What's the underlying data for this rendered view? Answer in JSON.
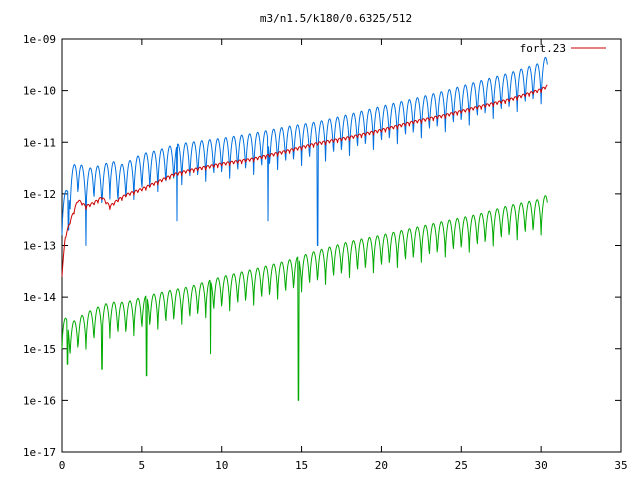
{
  "chart_data": {
    "type": "line",
    "title": "m3/n1.5/k180/0.6325/512",
    "xlabel": "",
    "ylabel": "",
    "xlim": [
      0,
      35
    ],
    "ylim": [
      1e-17,
      1e-09
    ],
    "yscale": "log",
    "grid": false,
    "legend_position": "top-right",
    "x_ticks": [
      0,
      5,
      10,
      15,
      20,
      25,
      30,
      35
    ],
    "x_tick_labels": [
      "0",
      "5",
      "10",
      "15",
      "20",
      "25",
      "30",
      "35"
    ],
    "y_ticks": [
      1e-17,
      1e-16,
      1e-15,
      1e-14,
      1e-13,
      1e-12,
      1e-11,
      1e-10,
      1e-09
    ],
    "y_tick_labels": [
      "1e-17",
      "1e-16",
      "1e-15",
      "1e-14",
      "1e-13",
      "1e-12",
      "1e-11",
      "1e-10",
      "1e-09"
    ],
    "series": [
      {
        "color": "#0070e0",
        "oscillation_depth_decades": 0.8,
        "oscillation_period": 0.5,
        "x": [
          0.0,
          0.3,
          0.6,
          1.0,
          1.5,
          2.0,
          2.5,
          3.0,
          3.5,
          4.0,
          5.0,
          6.0,
          7.0,
          8.0,
          9.0,
          10.0,
          12.0,
          14.0,
          16.0,
          18.0,
          20.0,
          22.0,
          24.0,
          26.0,
          28.0,
          30.0,
          30.4
        ],
        "y": [
          1e-12,
          1.2e-12,
          3e-12,
          5e-12,
          2.5e-12,
          4e-12,
          3e-12,
          5e-12,
          3.5e-12,
          4e-12,
          6e-12,
          7e-12,
          9e-12,
          1e-11,
          1.1e-11,
          1.2e-11,
          1.5e-11,
          2e-11,
          2.5e-11,
          3.5e-11,
          5e-11,
          7e-11,
          1e-10,
          1.5e-10,
          2.2e-10,
          3.5e-10,
          5e-10
        ],
        "dips": [
          {
            "x": 0.4,
            "y": 2e-13
          },
          {
            "x": 1.5,
            "y": 1e-13
          },
          {
            "x": 7.2,
            "y": 3e-13
          },
          {
            "x": 12.9,
            "y": 3e-13
          },
          {
            "x": 16.0,
            "y": 1e-13
          }
        ]
      },
      {
        "name": "fort.23",
        "color": "#cc0000",
        "oscillation_depth_decades": 0.08,
        "oscillation_period": 0.25,
        "x": [
          0.0,
          0.2,
          0.5,
          1.0,
          1.5,
          2.0,
          2.5,
          3.0,
          3.5,
          4.0,
          5.0,
          6.0,
          7.0,
          8.0,
          10.0,
          12.0,
          14.0,
          16.0,
          18.0,
          20.0,
          22.0,
          24.0,
          26.0,
          28.0,
          30.0,
          30.4
        ],
        "y": [
          3e-14,
          1.5e-13,
          3e-13,
          8e-13,
          6e-13,
          7e-13,
          9e-13,
          6e-13,
          8e-13,
          1e-12,
          1.3e-12,
          1.8e-12,
          2.5e-12,
          3e-12,
          4e-12,
          5e-12,
          7e-12,
          1e-11,
          1.3e-11,
          1.8e-11,
          2.6e-11,
          3.5e-11,
          5e-11,
          7e-11,
          1.1e-10,
          1.3e-10
        ],
        "dips": []
      },
      {
        "color": "#00aa00",
        "oscillation_depth_decades": 0.7,
        "oscillation_period": 0.5,
        "x": [
          0.0,
          0.5,
          1.0,
          2.0,
          3.0,
          4.0,
          5.0,
          6.0,
          7.0,
          8.0,
          9.0,
          10.0,
          12.0,
          14.0,
          16.0,
          18.0,
          20.0,
          22.0,
          24.0,
          26.0,
          28.0,
          30.0,
          30.4
        ],
        "y": [
          5e-15,
          3e-15,
          4e-15,
          6e-15,
          8e-15,
          8e-15,
          1e-14,
          1.2e-14,
          1.4e-14,
          1.6e-14,
          2e-14,
          2.5e-14,
          3.5e-14,
          5e-14,
          8e-14,
          1.2e-13,
          1.6e-13,
          2.2e-13,
          3e-13,
          4e-13,
          6e-13,
          8e-13,
          1e-12
        ],
        "dips": [
          {
            "x": 0.35,
            "y": 5e-16
          },
          {
            "x": 2.5,
            "y": 4e-16
          },
          {
            "x": 5.3,
            "y": 3e-16
          },
          {
            "x": 9.3,
            "y": 8e-16
          },
          {
            "x": 14.8,
            "y": 1e-16
          }
        ]
      }
    ]
  }
}
